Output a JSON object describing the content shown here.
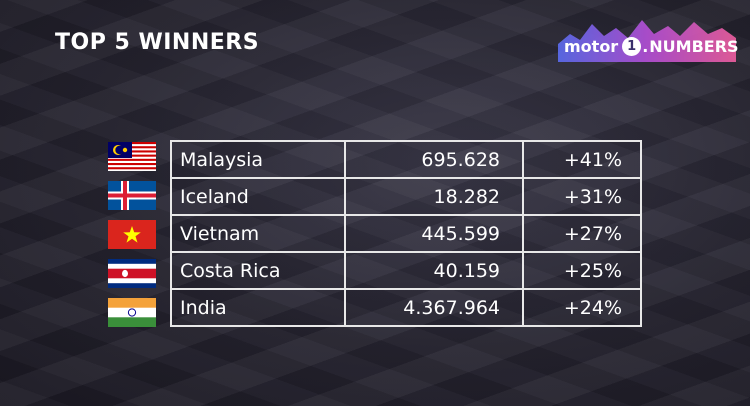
{
  "header": {
    "title": "TOP 5 WINNERS"
  },
  "logo": {
    "brand": "motor",
    "number": "1",
    "label": "NUMBERS"
  },
  "table": {
    "rows": [
      [
        "Malaysia",
        "695.628",
        "+41%"
      ],
      [
        "Iceland",
        "18.282",
        "+31%"
      ],
      [
        "Vietnam",
        "445.599",
        "+27%"
      ],
      [
        "Costa Rica",
        "40.159",
        "+25%"
      ],
      [
        "India",
        "4.367.964",
        "+24%"
      ]
    ]
  }
}
